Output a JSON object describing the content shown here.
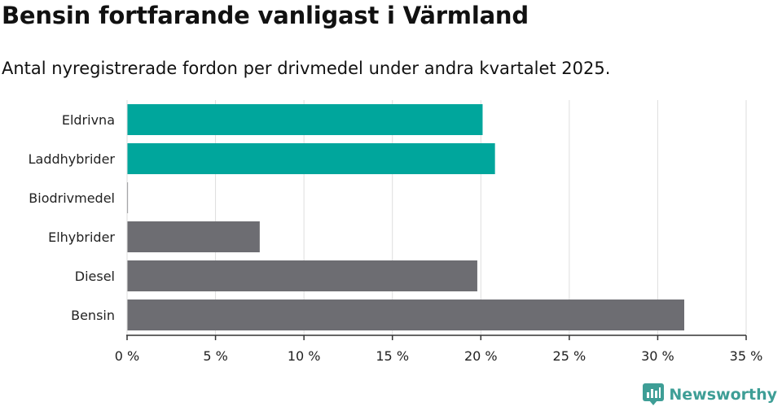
{
  "header": {
    "title": "Bensin fortfarande vanligast i Värmland",
    "subtitle": "Antal nyregistrerade fordon per drivmedel under andra kvartalet 2025."
  },
  "brand": {
    "name": "Newsworthy",
    "logo_icon": "newsworthy-bar-chart-icon",
    "color": "#3e9e96"
  },
  "chart_data": {
    "type": "bar",
    "orientation": "horizontal",
    "title": "Bensin fortfarande vanligast i Värmland",
    "subtitle": "Antal nyregistrerade fordon per drivmedel under andra kvartalet 2025.",
    "categories": [
      "Eldrivna",
      "Laddhybrider",
      "Biodrivmedel",
      "Elhybrider",
      "Diesel",
      "Bensin"
    ],
    "values": [
      20.1,
      20.8,
      0.05,
      7.5,
      19.8,
      31.5
    ],
    "colors": [
      "#00a69c",
      "#00a69c",
      "#6d6d72",
      "#6d6d72",
      "#6d6d72",
      "#6d6d72"
    ],
    "xlim": [
      0,
      35
    ],
    "xticks": [
      0,
      5,
      10,
      15,
      20,
      25,
      30,
      35
    ],
    "xtick_labels": [
      "0 %",
      "5 %",
      "10 %",
      "15 %",
      "20 %",
      "25 %",
      "30 %",
      "35 %"
    ],
    "xlabel": "",
    "ylabel": "",
    "grid": true,
    "legend": "none"
  }
}
